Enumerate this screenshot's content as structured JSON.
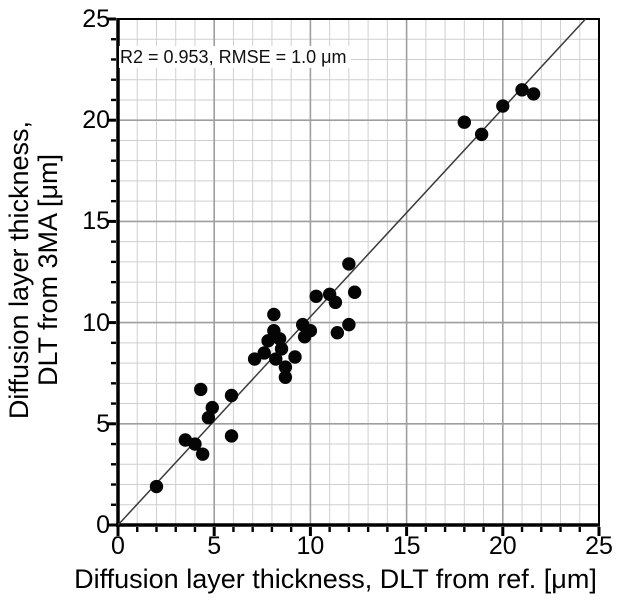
{
  "chart_data": {
    "type": "scatter",
    "annotation": "R2 = 0.953, RMSE = 1.0 μm",
    "xlabel": "Diffusion layer thickness, DLT from ref. [μm]",
    "ylabel_line1": "Diffusion layer thickness,",
    "ylabel_line2": "DLT from 3MA [μm]",
    "xlim": [
      0,
      25
    ],
    "ylim": [
      0,
      25
    ],
    "x_major_ticks": [
      0,
      5,
      10,
      15,
      20,
      25
    ],
    "y_major_ticks": [
      0,
      5,
      10,
      15,
      20,
      25
    ],
    "x_tick_labels": [
      "0",
      "5",
      "10",
      "15",
      "20",
      "25"
    ],
    "y_tick_labels": [
      "0",
      "5",
      "10",
      "15",
      "20",
      "25"
    ],
    "minor_tick_step": 1,
    "grid": "minor and major gridlines on",
    "legend": "none",
    "fit_line": {
      "x1": 0,
      "y1": 0,
      "x2": 24.3,
      "y2": 25
    },
    "points": [
      [
        2.0,
        1.9
      ],
      [
        3.5,
        4.2
      ],
      [
        4.0,
        4.0
      ],
      [
        4.4,
        3.5
      ],
      [
        4.3,
        6.7
      ],
      [
        4.7,
        5.3
      ],
      [
        4.9,
        5.8
      ],
      [
        5.9,
        6.4
      ],
      [
        5.9,
        4.4
      ],
      [
        7.1,
        8.2
      ],
      [
        7.6,
        8.5
      ],
      [
        7.8,
        9.1
      ],
      [
        8.1,
        10.4
      ],
      [
        8.1,
        9.6
      ],
      [
        8.4,
        9.2
      ],
      [
        8.2,
        8.2
      ],
      [
        8.5,
        8.7
      ],
      [
        8.7,
        7.8
      ],
      [
        8.7,
        7.3
      ],
      [
        9.2,
        8.3
      ],
      [
        9.6,
        9.9
      ],
      [
        9.7,
        9.3
      ],
      [
        10.0,
        9.6
      ],
      [
        10.3,
        11.3
      ],
      [
        11.0,
        11.4
      ],
      [
        11.3,
        11.0
      ],
      [
        12.0,
        12.9
      ],
      [
        12.3,
        11.5
      ],
      [
        11.4,
        9.5
      ],
      [
        12.0,
        9.9
      ],
      [
        18.0,
        19.9
      ],
      [
        18.9,
        19.3
      ],
      [
        20.0,
        20.7
      ],
      [
        21.0,
        21.5
      ],
      [
        21.6,
        21.3
      ]
    ],
    "colors": {
      "point": "#050505",
      "fit_line": "#3a3a3a",
      "grid_minor": "#cfcfcf",
      "grid_major": "#9e9e9e",
      "axis": "#000000",
      "background": "#ffffff"
    }
  }
}
